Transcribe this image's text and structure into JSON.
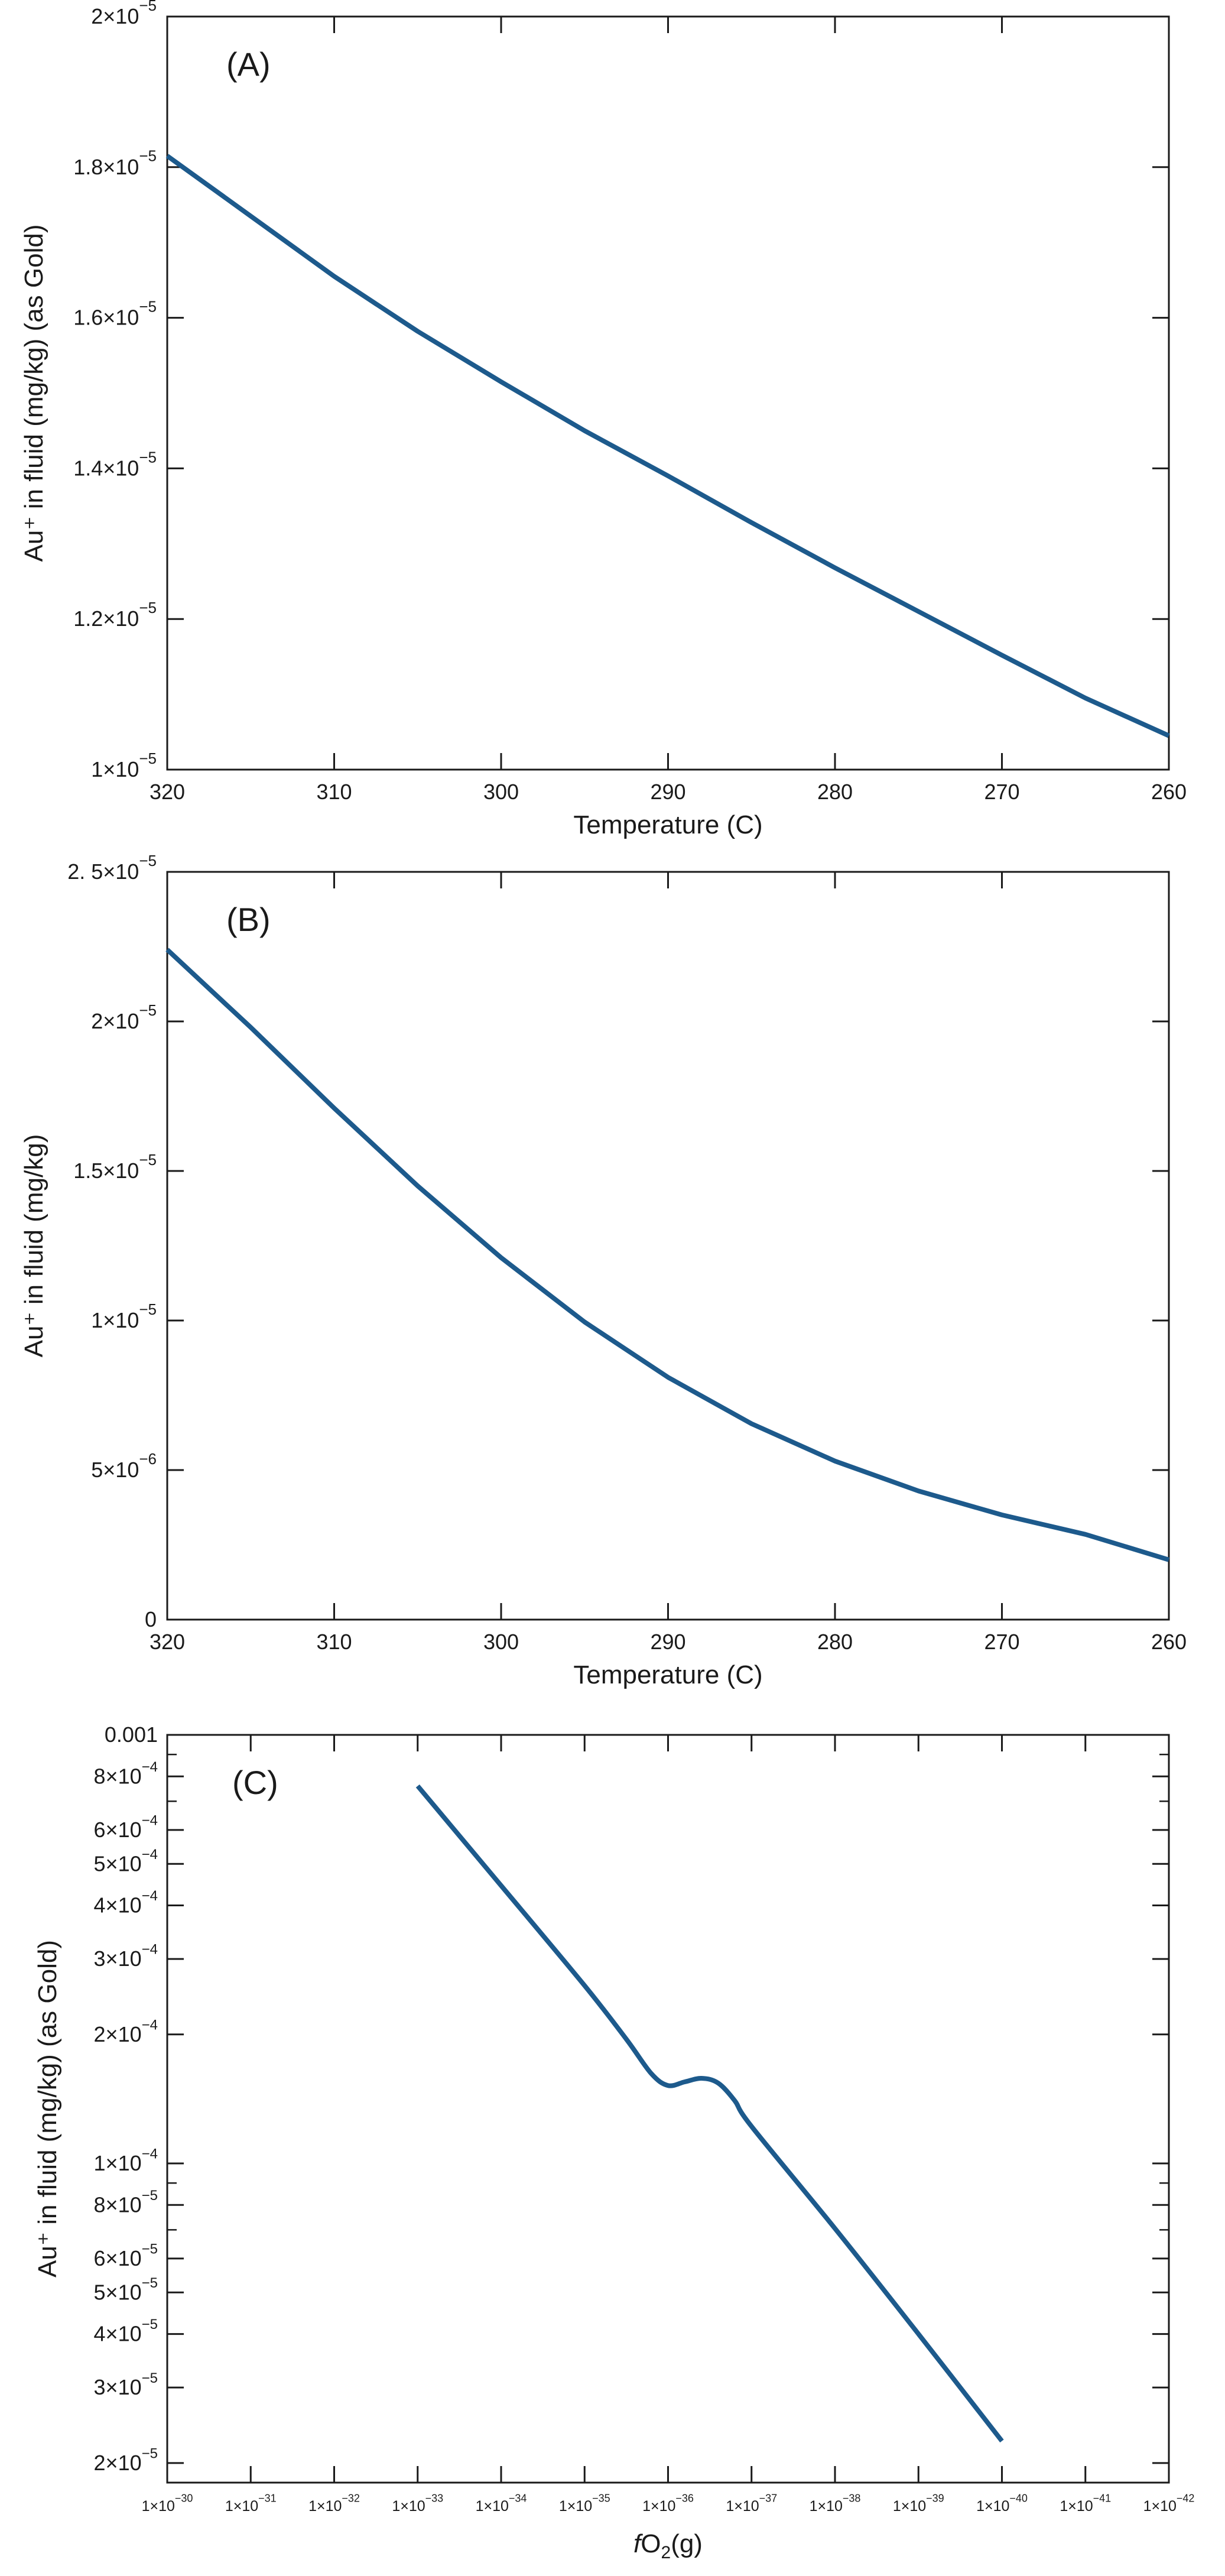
{
  "chart_data": [
    {
      "type": "line",
      "panel_label": "(A)",
      "xlabel": "Temperature (C)",
      "ylabel": "Au⁺ in fluid (mg/kg) (as Gold)",
      "xlim": [
        320,
        260
      ],
      "x_reversed": true,
      "ylim": [
        1e-05,
        2e-05
      ],
      "x_ticks": [
        320,
        310,
        300,
        290,
        280,
        270,
        260
      ],
      "x_tick_labels": [
        "320",
        "310",
        "300",
        "290",
        "280",
        "270",
        "260"
      ],
      "y_ticks": [
        1e-05,
        1.2e-05,
        1.4e-05,
        1.6e-05,
        1.8e-05,
        2e-05
      ],
      "y_tick_labels": [
        {
          "mant": "1×10",
          "exp": "−5"
        },
        {
          "mant": "1.2×10",
          "exp": "−5"
        },
        {
          "mant": "1.4×10",
          "exp": "−5"
        },
        {
          "mant": "1.6×10",
          "exp": "−5"
        },
        {
          "mant": "1.8×10",
          "exp": "−5"
        },
        {
          "mant": "2×10",
          "exp": "−5"
        }
      ],
      "series": [
        {
          "name": "Au+",
          "color": "#1d5a8c",
          "x": [
            320,
            315,
            310,
            305,
            300,
            295,
            290,
            285,
            280,
            275,
            270,
            265,
            260
          ],
          "y": [
            1.815e-05,
            1.735e-05,
            1.655e-05,
            1.582e-05,
            1.515e-05,
            1.45e-05,
            1.39e-05,
            1.328e-05,
            1.268e-05,
            1.21e-05,
            1.152e-05,
            1.095e-05,
            1.045e-05
          ]
        }
      ]
    },
    {
      "type": "line",
      "panel_label": "(B)",
      "xlabel": "Temperature (C)",
      "ylabel": "Au⁺ in fluid (mg/kg)",
      "xlim": [
        320,
        260
      ],
      "x_reversed": true,
      "ylim": [
        0,
        2.5e-05
      ],
      "x_ticks": [
        320,
        310,
        300,
        290,
        280,
        270,
        260
      ],
      "x_tick_labels": [
        "320",
        "310",
        "300",
        "290",
        "280",
        "270",
        "260"
      ],
      "y_ticks": [
        0,
        5e-06,
        1e-05,
        1.5e-05,
        2e-05,
        2.5e-05
      ],
      "y_tick_labels": [
        {
          "mant": "0",
          "exp": ""
        },
        {
          "mant": "5×10",
          "exp": "−6"
        },
        {
          "mant": "1×10",
          "exp": "−5"
        },
        {
          "mant": "1.5×10",
          "exp": "−5"
        },
        {
          "mant": "2×10",
          "exp": "−5"
        },
        {
          "mant": "2. 5×10",
          "exp": "−5"
        }
      ],
      "series": [
        {
          "name": "Au+",
          "color": "#1d5a8c",
          "x": [
            320,
            315,
            310,
            305,
            300,
            295,
            290,
            285,
            280,
            275,
            270,
            265,
            260
          ],
          "y": [
            2.24e-05,
            1.98e-05,
            1.71e-05,
            1.45e-05,
            1.21e-05,
            9.95e-06,
            8.1e-06,
            6.55e-06,
            5.3e-06,
            4.3e-06,
            3.5e-06,
            2.85e-06,
            2e-06
          ]
        }
      ]
    },
    {
      "type": "line",
      "panel_label": "(C)",
      "xlabel_italic": "f",
      "xlabel_main": "O",
      "xlabel_sub": "2",
      "xlabel_tail": "(g)",
      "ylabel": "Au⁺ in fluid (mg/kg) (as Gold)",
      "x_scale": "log",
      "y_scale": "log",
      "x_reversed": true,
      "xlim_log10": [
        -30,
        -42
      ],
      "ylim": [
        1.8e-05,
        0.001
      ],
      "x_ticks_log10": [
        -30,
        -31,
        -32,
        -33,
        -34,
        -35,
        -36,
        -37,
        -38,
        -39,
        -40,
        -41,
        -42
      ],
      "x_tick_labels": [
        {
          "mant": "1×10",
          "exp": "−30"
        },
        {
          "mant": "1×10",
          "exp": "−31"
        },
        {
          "mant": "1×10",
          "exp": "−32"
        },
        {
          "mant": "1×10",
          "exp": "−33"
        },
        {
          "mant": "1×10",
          "exp": "−34"
        },
        {
          "mant": "1×10",
          "exp": "−35"
        },
        {
          "mant": "1×10",
          "exp": "−36"
        },
        {
          "mant": "1×10",
          "exp": "−37"
        },
        {
          "mant": "1×10",
          "exp": "−38"
        },
        {
          "mant": "1×10",
          "exp": "−39"
        },
        {
          "mant": "1×10",
          "exp": "−40"
        },
        {
          "mant": "1×10",
          "exp": "−41"
        },
        {
          "mant": "1×10",
          "exp": "−42"
        }
      ],
      "y_ticks": [
        2e-05,
        3e-05,
        4e-05,
        5e-05,
        6e-05,
        8e-05,
        0.0001,
        0.0002,
        0.0003,
        0.0004,
        0.0005,
        0.0006,
        0.0008,
        0.001
      ],
      "y_tick_labels": [
        {
          "mant": "2×10",
          "exp": "−5"
        },
        {
          "mant": "3×10",
          "exp": "−5"
        },
        {
          "mant": "4×10",
          "exp": "−5"
        },
        {
          "mant": "5×10",
          "exp": "−5"
        },
        {
          "mant": "6×10",
          "exp": "−5"
        },
        {
          "mant": "8×10",
          "exp": "−5"
        },
        {
          "mant": "1×10",
          "exp": "−4"
        },
        {
          "mant": "2×10",
          "exp": "−4"
        },
        {
          "mant": "3×10",
          "exp": "−4"
        },
        {
          "mant": "4×10",
          "exp": "−4"
        },
        {
          "mant": "5×10",
          "exp": "−4"
        },
        {
          "mant": "6×10",
          "exp": "−4"
        },
        {
          "mant": "8×10",
          "exp": "−4"
        },
        {
          "mant": "0.001",
          "exp": ""
        }
      ],
      "series": [
        {
          "name": "Au+",
          "color": "#1d5a8c",
          "x_log10": [
            -33.0,
            -34.0,
            -35.0,
            -35.5,
            -35.8,
            -36.0,
            -36.2,
            -36.4,
            -36.6,
            -36.8,
            -37.0,
            -38.0,
            -39.0,
            -40.0
          ],
          "y": [
            0.00076,
            0.000445,
            0.00026,
            0.000195,
            0.000162,
            0.000152,
            0.000155,
            0.000158,
            0.000154,
            0.00014,
            0.000122,
            7.05e-05,
            4e-05,
            2.25e-05
          ]
        }
      ]
    }
  ]
}
